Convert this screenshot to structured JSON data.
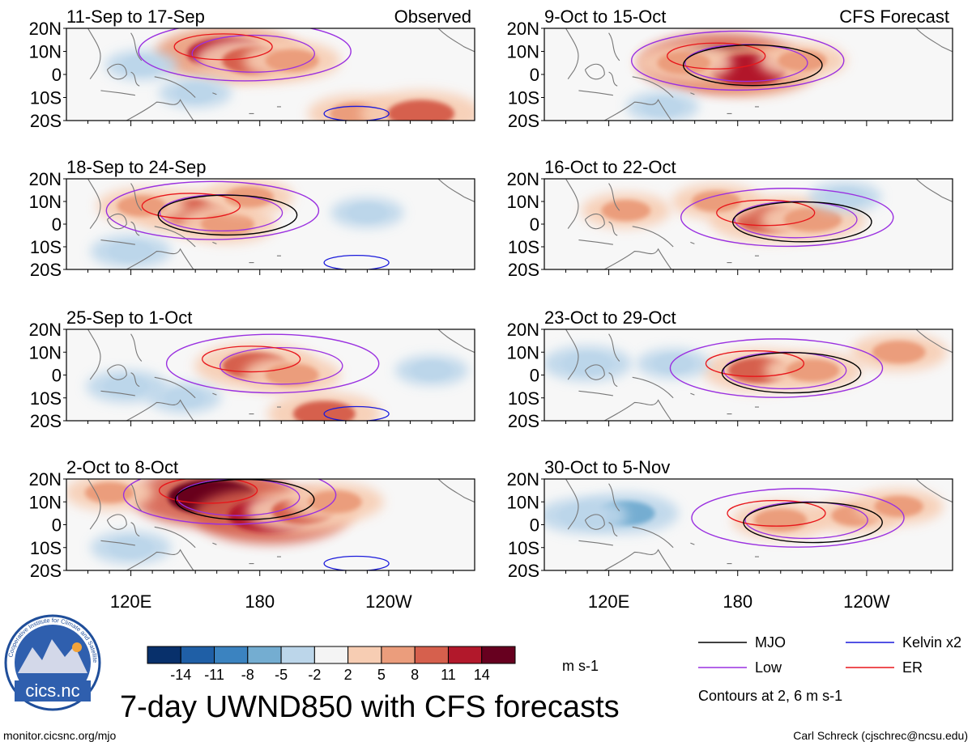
{
  "chart_data": {
    "type": "heatmap",
    "title": "7-day UWND850 with CFS forecasts",
    "units": "m s-1",
    "contour_note": "Contours at 2, 6 m s-1",
    "column_headers": {
      "observed": "Observed",
      "forecast": "CFS Forecast"
    },
    "y_ticks": [
      "20N",
      "10N",
      "0",
      "10S",
      "20S"
    ],
    "x_ticks": [
      "120E",
      "180",
      "120W"
    ],
    "colorbar": {
      "levels": [
        -14,
        -11,
        -8,
        -5,
        -2,
        2,
        5,
        8,
        11,
        14
      ],
      "colors": [
        "#08306b",
        "#1f5fa6",
        "#3b83c0",
        "#74add1",
        "#bcd6ea",
        "#f4f4f4",
        "#f7cdb3",
        "#eb9d7c",
        "#d6604d",
        "#b2182b",
        "#67001f"
      ]
    },
    "legend": [
      {
        "name": "MJO",
        "color": "#000000"
      },
      {
        "name": "Kelvin x2",
        "color": "#1a1adb"
      },
      {
        "name": "Low",
        "color": "#9a30e0"
      },
      {
        "name": "ER",
        "color": "#e8161b"
      }
    ],
    "panels": [
      {
        "period": "11-Sep to 17-Sep",
        "source": "observed",
        "blobs": [
          {
            "lon": 165,
            "lat": 9,
            "value": 12
          },
          {
            "lon": 178,
            "lat": 6,
            "value": 9
          },
          {
            "lon": 195,
            "lat": 6,
            "value": 6
          },
          {
            "lon": 225,
            "lat": -17,
            "value": 6
          },
          {
            "lon": 255,
            "lat": -17,
            "value": 9
          },
          {
            "lon": 125,
            "lat": 4,
            "value": -3
          },
          {
            "lon": 150,
            "lat": -8,
            "value": -3
          }
        ]
      },
      {
        "period": "18-Sep to 24-Sep",
        "source": "observed",
        "blobs": [
          {
            "lon": 150,
            "lat": 5,
            "value": 9
          },
          {
            "lon": 165,
            "lat": 0,
            "value": 6
          },
          {
            "lon": 175,
            "lat": 12,
            "value": 5
          },
          {
            "lon": 125,
            "lat": 8,
            "value": 5
          },
          {
            "lon": 230,
            "lat": 5,
            "value": -3
          },
          {
            "lon": 120,
            "lat": -12,
            "value": -4
          }
        ]
      },
      {
        "period": "25-Sep to 1-Oct",
        "source": "observed",
        "blobs": [
          {
            "lon": 178,
            "lat": 4,
            "value": 9
          },
          {
            "lon": 195,
            "lat": 0,
            "value": 6
          },
          {
            "lon": 210,
            "lat": -17,
            "value": 8
          },
          {
            "lon": 118,
            "lat": -5,
            "value": -4
          },
          {
            "lon": 260,
            "lat": 2,
            "value": -3
          },
          {
            "lon": 145,
            "lat": -10,
            "value": -3
          }
        ]
      },
      {
        "period": "2-Oct to 8-Oct",
        "source": "observed",
        "blobs": [
          {
            "lon": 158,
            "lat": 12,
            "value": 14
          },
          {
            "lon": 185,
            "lat": 4,
            "value": 13
          },
          {
            "lon": 200,
            "lat": 6,
            "value": 8
          },
          {
            "lon": 215,
            "lat": 10,
            "value": 6
          },
          {
            "lon": 120,
            "lat": -10,
            "value": -4
          },
          {
            "lon": 110,
            "lat": 14,
            "value": 5
          }
        ]
      },
      {
        "period": "9-Oct to 15-Oct",
        "source": "forecast",
        "blobs": [
          {
            "lon": 172,
            "lat": 5,
            "value": 14
          },
          {
            "lon": 185,
            "lat": 2,
            "value": 11
          },
          {
            "lon": 155,
            "lat": 5,
            "value": 6
          },
          {
            "lon": 210,
            "lat": 6,
            "value": 5
          },
          {
            "lon": 145,
            "lat": -14,
            "value": -3
          }
        ]
      },
      {
        "period": "16-Oct to 22-Oct",
        "source": "forecast",
        "blobs": [
          {
            "lon": 195,
            "lat": 2,
            "value": 9
          },
          {
            "lon": 215,
            "lat": 2,
            "value": 7
          },
          {
            "lon": 170,
            "lat": 10,
            "value": 5
          },
          {
            "lon": 128,
            "lat": 6,
            "value": 5
          },
          {
            "lon": 230,
            "lat": 12,
            "value": -3
          }
        ]
      },
      {
        "period": "23-Oct to 29-Oct",
        "source": "forecast",
        "blobs": [
          {
            "lon": 190,
            "lat": 2,
            "value": 8
          },
          {
            "lon": 215,
            "lat": 2,
            "value": 6
          },
          {
            "lon": 255,
            "lat": 10,
            "value": 6
          },
          {
            "lon": 110,
            "lat": 5,
            "value": -5
          },
          {
            "lon": 150,
            "lat": 5,
            "value": -3
          }
        ]
      },
      {
        "period": "30-Oct to 5-Nov",
        "source": "forecast",
        "blobs": [
          {
            "lon": 200,
            "lat": 2,
            "value": 6
          },
          {
            "lon": 235,
            "lat": 4,
            "value": 5
          },
          {
            "lon": 255,
            "lat": 8,
            "value": 5
          },
          {
            "lon": 128,
            "lat": 5,
            "value": -7
          },
          {
            "lon": 108,
            "lat": 4,
            "value": -5
          }
        ]
      }
    ]
  },
  "logo": {
    "text": "cics.nc",
    "ring_text": "Cooperative Institute for Climate and Satellites"
  },
  "footer": {
    "url": "monitor.cicsnc.org/mjo",
    "credit": "Carl Schreck (cjschrec@ncsu.edu)"
  }
}
